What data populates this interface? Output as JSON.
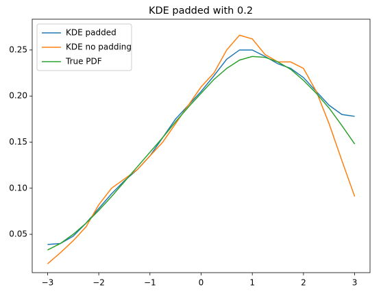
{
  "chart_data": {
    "type": "line",
    "title": "KDE padded with 0.2",
    "x": [
      -3,
      -2.75,
      -2.5,
      -2.25,
      -2,
      -1.75,
      -1.5,
      -1.25,
      -1,
      -0.75,
      -0.5,
      -0.25,
      0,
      0.25,
      0.5,
      0.75,
      1,
      1.25,
      1.5,
      1.75,
      2,
      2.25,
      2.5,
      2.75,
      3
    ],
    "series": [
      {
        "name": "KDE padded",
        "color": "#1f77b4",
        "values": [
          0.039,
          0.04,
          0.048,
          0.062,
          0.078,
          0.094,
          0.108,
          0.12,
          0.135,
          0.155,
          0.175,
          0.19,
          0.205,
          0.222,
          0.24,
          0.25,
          0.25,
          0.243,
          0.235,
          0.23,
          0.22,
          0.205,
          0.19,
          0.18,
          0.178
        ]
      },
      {
        "name": "KDE no padding",
        "color": "#ff7f0e",
        "values": [
          0.018,
          0.03,
          0.043,
          0.058,
          0.082,
          0.1,
          0.11,
          0.12,
          0.135,
          0.15,
          0.17,
          0.19,
          0.21,
          0.225,
          0.25,
          0.266,
          0.262,
          0.245,
          0.237,
          0.237,
          0.23,
          0.205,
          0.17,
          0.13,
          0.091
        ]
      },
      {
        "name": "True PDF",
        "color": "#2ca02c",
        "values": [
          0.033,
          0.04,
          0.05,
          0.062,
          0.076,
          0.091,
          0.107,
          0.123,
          0.139,
          0.155,
          0.172,
          0.188,
          0.203,
          0.218,
          0.23,
          0.239,
          0.243,
          0.242,
          0.237,
          0.229,
          0.217,
          0.203,
          0.187,
          0.168,
          0.148
        ]
      }
    ],
    "xlim": [
      -3.3,
      3.3
    ],
    "xticks": [
      {
        "value": -3,
        "label": "−3"
      },
      {
        "value": -2,
        "label": "−2"
      },
      {
        "value": -1,
        "label": "−1"
      },
      0,
      1,
      2,
      3
    ],
    "ylim": [
      0.0084,
      0.2834
    ],
    "yticks": [
      0.05,
      {
        "value": 0.1,
        "label": "0.10"
      },
      0.15,
      {
        "value": 0.2,
        "label": "0.20"
      },
      0.25
    ],
    "legend": "upper left"
  }
}
